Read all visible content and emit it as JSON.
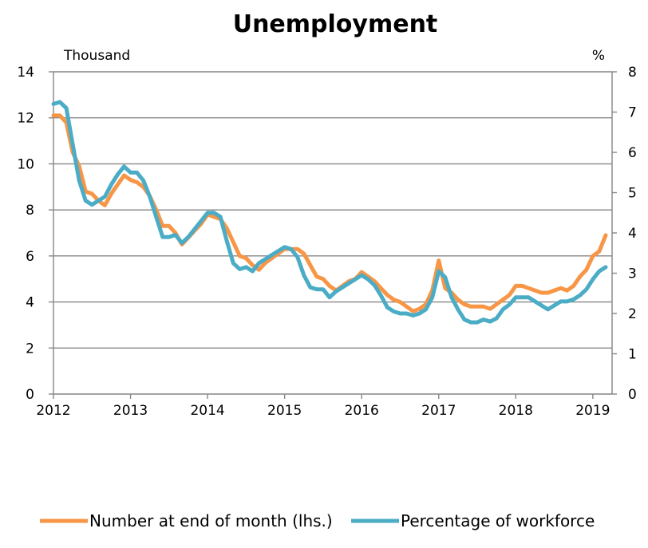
{
  "chart_data": {
    "type": "line",
    "title": "Unemployment",
    "left_unit": "Thousand",
    "right_unit": "%",
    "x_ticks": [
      "2012",
      "2013",
      "2014",
      "2015",
      "2016",
      "2017",
      "2018",
      "2019"
    ],
    "y_left_ticks": [
      "0",
      "2",
      "4",
      "6",
      "8",
      "10",
      "12",
      "14"
    ],
    "y_right_ticks": [
      "0",
      "1",
      "2",
      "3",
      "4",
      "5",
      "6",
      "7",
      "8"
    ],
    "xlim": [
      2012.0,
      2019.25
    ],
    "ylim_left": [
      0,
      14
    ],
    "ylim_right": [
      0,
      8
    ],
    "grid": true,
    "legend_position": "bottom",
    "series": [
      {
        "name": "Number at end of month (lhs.)",
        "axis": "left",
        "color": "#F79646",
        "x": [
          2012.0,
          2012.083,
          2012.167,
          2012.25,
          2012.333,
          2012.417,
          2012.5,
          2012.583,
          2012.667,
          2012.75,
          2012.833,
          2012.917,
          2013.0,
          2013.083,
          2013.167,
          2013.25,
          2013.333,
          2013.417,
          2013.5,
          2013.583,
          2013.667,
          2013.75,
          2013.833,
          2013.917,
          2014.0,
          2014.083,
          2014.167,
          2014.25,
          2014.333,
          2014.417,
          2014.5,
          2014.583,
          2014.667,
          2014.75,
          2014.833,
          2014.917,
          2015.0,
          2015.083,
          2015.167,
          2015.25,
          2015.333,
          2015.417,
          2015.5,
          2015.583,
          2015.667,
          2015.75,
          2015.833,
          2015.917,
          2016.0,
          2016.083,
          2016.167,
          2016.25,
          2016.333,
          2016.417,
          2016.5,
          2016.583,
          2016.667,
          2016.75,
          2016.833,
          2016.917,
          2017.0,
          2017.083,
          2017.167,
          2017.25,
          2017.333,
          2017.417,
          2017.5,
          2017.583,
          2017.667,
          2017.75,
          2017.833,
          2017.917,
          2018.0,
          2018.083,
          2018.167,
          2018.25,
          2018.333,
          2018.417,
          2018.5,
          2018.583,
          2018.667,
          2018.75,
          2018.833,
          2018.917,
          2019.0,
          2019.083,
          2019.167
        ],
        "values": [
          12.1,
          12.1,
          11.8,
          10.5,
          9.9,
          8.8,
          8.7,
          8.4,
          8.2,
          8.7,
          9.1,
          9.5,
          9.3,
          9.2,
          9.0,
          8.6,
          8.0,
          7.3,
          7.3,
          7.0,
          6.5,
          6.8,
          7.1,
          7.4,
          7.8,
          7.7,
          7.6,
          7.2,
          6.6,
          6.0,
          5.9,
          5.6,
          5.4,
          5.7,
          5.9,
          6.1,
          6.3,
          6.3,
          6.3,
          6.1,
          5.6,
          5.1,
          5.0,
          4.7,
          4.5,
          4.7,
          4.9,
          5.0,
          5.3,
          5.1,
          4.9,
          4.6,
          4.3,
          4.1,
          4.0,
          3.8,
          3.6,
          3.7,
          3.9,
          4.5,
          5.8,
          4.6,
          4.4,
          4.1,
          3.9,
          3.8,
          3.8,
          3.8,
          3.7,
          3.9,
          4.1,
          4.3,
          4.7,
          4.7,
          4.6,
          4.5,
          4.4,
          4.4,
          4.5,
          4.6,
          4.5,
          4.7,
          5.1,
          5.4,
          6.0,
          6.2,
          6.9
        ]
      },
      {
        "name": "Percentage of workforce",
        "axis": "right",
        "color": "#4BACC6",
        "x": [
          2012.0,
          2012.083,
          2012.167,
          2012.25,
          2012.333,
          2012.417,
          2012.5,
          2012.583,
          2012.667,
          2012.75,
          2012.833,
          2012.917,
          2013.0,
          2013.083,
          2013.167,
          2013.25,
          2013.333,
          2013.417,
          2013.5,
          2013.583,
          2013.667,
          2013.75,
          2013.833,
          2013.917,
          2014.0,
          2014.083,
          2014.167,
          2014.25,
          2014.333,
          2014.417,
          2014.5,
          2014.583,
          2014.667,
          2014.75,
          2014.833,
          2014.917,
          2015.0,
          2015.083,
          2015.167,
          2015.25,
          2015.333,
          2015.417,
          2015.5,
          2015.583,
          2015.667,
          2015.75,
          2015.833,
          2015.917,
          2016.0,
          2016.083,
          2016.167,
          2016.25,
          2016.333,
          2016.417,
          2016.5,
          2016.583,
          2016.667,
          2016.75,
          2016.833,
          2016.917,
          2017.0,
          2017.083,
          2017.167,
          2017.25,
          2017.333,
          2017.417,
          2017.5,
          2017.583,
          2017.667,
          2017.75,
          2017.833,
          2017.917,
          2018.0,
          2018.083,
          2018.167,
          2018.25,
          2018.333,
          2018.417,
          2018.5,
          2018.583,
          2018.667,
          2018.75,
          2018.833,
          2018.917,
          2019.0,
          2019.083,
          2019.167
        ],
        "values": [
          7.2,
          7.25,
          7.1,
          6.2,
          5.3,
          4.8,
          4.7,
          4.8,
          4.9,
          5.2,
          5.45,
          5.65,
          5.5,
          5.5,
          5.3,
          4.9,
          4.4,
          3.9,
          3.9,
          3.95,
          3.75,
          3.9,
          4.1,
          4.3,
          4.5,
          4.5,
          4.4,
          3.8,
          3.25,
          3.1,
          3.15,
          3.05,
          3.25,
          3.35,
          3.45,
          3.55,
          3.65,
          3.6,
          3.4,
          2.95,
          2.65,
          2.6,
          2.6,
          2.4,
          2.55,
          2.65,
          2.75,
          2.85,
          2.95,
          2.85,
          2.7,
          2.45,
          2.15,
          2.05,
          2.0,
          2.0,
          1.95,
          2.0,
          2.1,
          2.4,
          3.05,
          2.9,
          2.4,
          2.1,
          1.85,
          1.78,
          1.78,
          1.85,
          1.8,
          1.88,
          2.1,
          2.22,
          2.4,
          2.4,
          2.4,
          2.3,
          2.2,
          2.1,
          2.2,
          2.3,
          2.3,
          2.35,
          2.45,
          2.6,
          2.85,
          3.05,
          3.15
        ]
      }
    ]
  }
}
